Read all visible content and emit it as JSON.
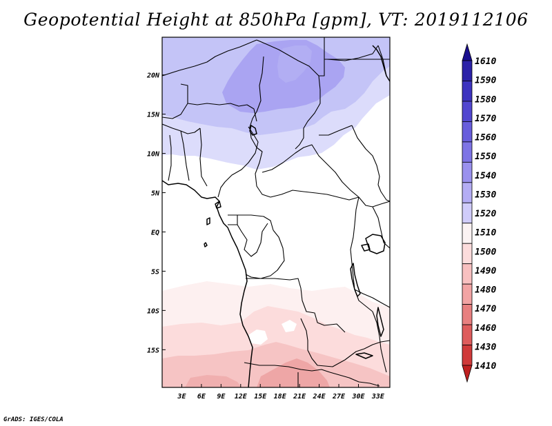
{
  "title": "Geopotential Height at 850hPa [gpm], VT: 2019112106",
  "footer": "GrADS: IGES/COLA",
  "map": {
    "lon_range": [
      0,
      34.8
    ],
    "lat_range": [
      -19.8,
      24.8
    ],
    "x_ticks": [
      "3E",
      "6E",
      "9E",
      "12E",
      "15E",
      "18E",
      "21E",
      "24E",
      "27E",
      "30E",
      "33E"
    ],
    "x_tick_values": [
      3,
      6,
      9,
      12,
      15,
      18,
      21,
      24,
      27,
      30,
      33
    ],
    "y_ticks": [
      "20N",
      "15N",
      "10N",
      "5N",
      "EQ",
      "5S",
      "10S",
      "15S"
    ],
    "y_tick_values": [
      20,
      15,
      10,
      5,
      0,
      -5,
      -10,
      -15
    ]
  },
  "colorbar": {
    "levels": [
      "1610",
      "1590",
      "1580",
      "1570",
      "1560",
      "1550",
      "1540",
      "1530",
      "1520",
      "1510",
      "1500",
      "1490",
      "1480",
      "1470",
      "1460",
      "1430",
      "1410"
    ],
    "colors": [
      "#1a0f8f",
      "#2c22a8",
      "#3d33bf",
      "#5247d0",
      "#685ddc",
      "#7e74e5",
      "#9a91ee",
      "#b4adf4",
      "#d0ccfa",
      "#fbf3f3",
      "#fcdcdc",
      "#f8c0c0",
      "#f2a4a4",
      "#e88080",
      "#de5c5c",
      "#d03a3a",
      "#bf2020"
    ]
  },
  "fields": {
    "field_colors": {
      "c1520": "#dcdcfb",
      "c1530": "#c4c4f7",
      "c1540": "#aaa4f2",
      "c1510": "#fdf0f0",
      "c1500": "#fcdcdc",
      "c1490": "#f6c4c4",
      "c1480": "#eea6a6"
    }
  }
}
